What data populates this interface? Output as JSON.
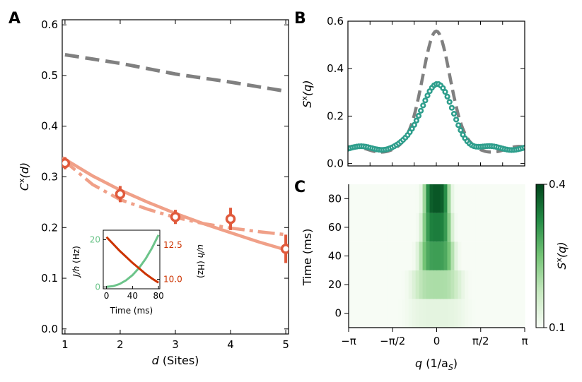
{
  "figure": {
    "panel_labels": [
      "A",
      "B",
      "C"
    ]
  },
  "chart_data": [
    {
      "id": "A",
      "type": "line",
      "xlabel": {
        "var": "d",
        "unit": " (Sites)"
      },
      "ylabel": {
        "base": "C",
        "sup": "x",
        "arg": "(d)"
      },
      "xlim": [
        0.95,
        5.05
      ],
      "ylim": [
        -0.01,
        0.61
      ],
      "xticks": [
        1,
        2,
        3,
        4,
        5
      ],
      "yticks": [
        "0.0",
        "0.1",
        "0.2",
        "0.3",
        "0.4",
        "0.5",
        "0.6"
      ],
      "series": [
        {
          "name": "gray-dashed",
          "style": "dashed",
          "color": "#808080",
          "x": [
            1,
            2,
            3,
            4,
            5
          ],
          "y": [
            0.541,
            0.524,
            0.503,
            0.487,
            0.469
          ]
        },
        {
          "name": "fit-solid",
          "style": "solid",
          "color": "#f0a088",
          "x": [
            0.95,
            1.5,
            2,
            2.5,
            3,
            3.5,
            4,
            4.5,
            5
          ],
          "y": [
            0.338,
            0.302,
            0.274,
            0.25,
            0.228,
            0.208,
            0.19,
            0.172,
            0.156
          ]
        },
        {
          "name": "fit-dashdot",
          "style": "dashdot",
          "color": "#f0a088",
          "x": [
            0.95,
            1.5,
            2,
            2.5,
            3,
            3.5,
            4,
            4.5,
            5
          ],
          "y": [
            0.335,
            0.285,
            0.255,
            0.236,
            0.22,
            0.208,
            0.199,
            0.192,
            0.186
          ]
        },
        {
          "name": "data",
          "style": "markers",
          "color": "#e05a3c",
          "x": [
            1,
            2,
            3,
            4,
            5
          ],
          "y": [
            0.327,
            0.266,
            0.221,
            0.217,
            0.158
          ],
          "err": [
            0.012,
            0.016,
            0.014,
            0.022,
            0.028
          ]
        }
      ],
      "inset": {
        "xlabel": "Time (ms)",
        "ylabel_left": {
          "var": "J/h",
          "unit": " (Hz)"
        },
        "ylabel_right": {
          "var": "u/h",
          "unit": " (Hz)"
        },
        "xlim": [
          -5,
          82
        ],
        "xticks": [
          "0",
          "40",
          "80"
        ],
        "yticks_left": [
          "0",
          "20"
        ],
        "yticks_right": [
          "10.0",
          "12.5"
        ],
        "left_color": "#6cc48a",
        "right_color": "#cc3300",
        "left_series": {
          "t": [
            0,
            10,
            20,
            30,
            40,
            50,
            60,
            70,
            80
          ],
          "y": [
            0,
            0.3,
            1.2,
            2.8,
            5.0,
            8.0,
            11.8,
            16.5,
            22.0
          ]
        },
        "right_series": {
          "t": [
            0,
            10,
            20,
            30,
            40,
            50,
            60,
            70,
            80
          ],
          "y": [
            13.1,
            12.6,
            12.1,
            11.65,
            11.2,
            10.8,
            10.4,
            10.05,
            9.75
          ]
        }
      }
    },
    {
      "id": "B",
      "type": "line",
      "ylabel": {
        "base": "S",
        "sup": "x",
        "arg": "(q)"
      },
      "xlim": [
        -3.1416,
        3.1416
      ],
      "ylim": [
        -0.01,
        0.6
      ],
      "yticks": [
        "0.0",
        "0.2",
        "0.4",
        "0.6"
      ],
      "series": [
        {
          "name": "gray-dashed",
          "style": "dashed",
          "color": "#808080",
          "model": {
            "amp": 0.51,
            "sigma": 0.48,
            "base": 0.06
          }
        },
        {
          "name": "teal-circles",
          "style": "markers",
          "color": "#2e9e8c",
          "model": {
            "amp": 0.27,
            "sigma": 0.55,
            "base": 0.065
          }
        }
      ]
    },
    {
      "id": "C",
      "type": "heatmap",
      "xlabel": {
        "var": "q",
        "unit": " (1/a",
        "sub": "S",
        "close": ")"
      },
      "ylabel": "Time (ms)",
      "xlim": [
        -3.1416,
        3.1416
      ],
      "ylim": [
        -10,
        90
      ],
      "xticks": [
        "−π",
        "−π/2",
        "0",
        "π/2",
        "π"
      ],
      "yticks": [
        "0",
        "20",
        "40",
        "60",
        "80"
      ],
      "rows": [
        {
          "t_from": -10,
          "t_to": 10,
          "peak": 0.13,
          "width": 1.0
        },
        {
          "t_from": 10,
          "t_to": 30,
          "peak": 0.2,
          "width": 0.85
        },
        {
          "t_from": 30,
          "t_to": 50,
          "peak": 0.3,
          "width": 0.6
        },
        {
          "t_from": 50,
          "t_to": 70,
          "peak": 0.34,
          "width": 0.5
        },
        {
          "t_from": 70,
          "t_to": 90,
          "peak": 0.38,
          "width": 0.45
        }
      ],
      "colorbar": {
        "min": 0.1,
        "max": 0.4,
        "ticks": [
          "0.1",
          "0.4"
        ],
        "label": {
          "base": "S",
          "sup": "x",
          "arg": "(q)"
        },
        "color_low": "#f7fcf5",
        "color_high": "#00441b"
      }
    }
  ]
}
